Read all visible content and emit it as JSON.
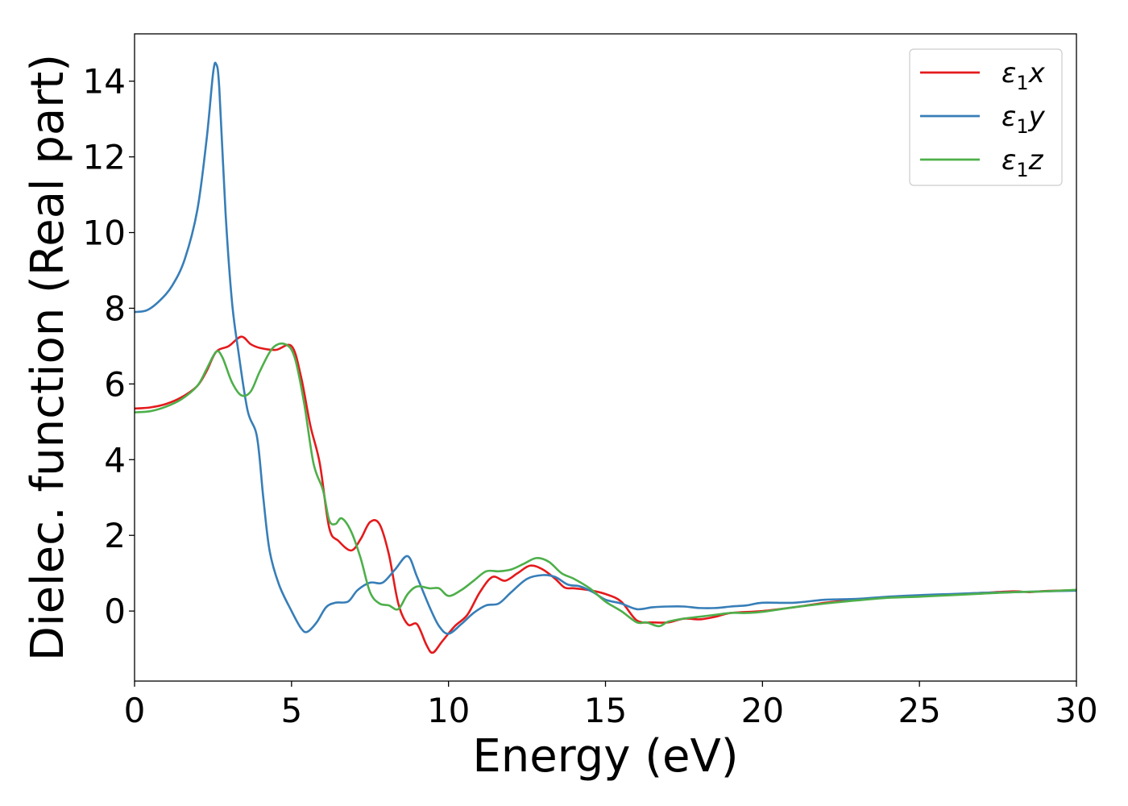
{
  "chart_data": {
    "type": "line",
    "title": "",
    "xlabel": "Energy (eV)",
    "ylabel": "Dielec. function (Real part)",
    "xlim": [
      0,
      30
    ],
    "ylim": [
      -1.85,
      15.25
    ],
    "xticks": [
      0,
      5,
      10,
      15,
      20,
      25,
      30
    ],
    "yticks": [
      0,
      2,
      4,
      6,
      8,
      10,
      12,
      14
    ],
    "grid": false,
    "legend_position": "top-right",
    "series": [
      {
        "name": "ε₁x",
        "legend_main": "ε",
        "legend_sub": "1",
        "legend_tail": "x",
        "color": "#e41a1c",
        "points": [
          [
            0,
            5.35
          ],
          [
            0.5,
            5.38
          ],
          [
            1,
            5.47
          ],
          [
            1.5,
            5.65
          ],
          [
            2,
            5.95
          ],
          [
            2.3,
            6.35
          ],
          [
            2.6,
            6.85
          ],
          [
            3.0,
            7.0
          ],
          [
            3.4,
            7.25
          ],
          [
            3.7,
            7.05
          ],
          [
            4.0,
            6.95
          ],
          [
            4.5,
            6.9
          ],
          [
            5.0,
            7.0
          ],
          [
            5.3,
            6.2
          ],
          [
            5.6,
            4.9
          ],
          [
            5.9,
            3.9
          ],
          [
            6.2,
            2.2
          ],
          [
            6.5,
            1.85
          ],
          [
            6.9,
            1.6
          ],
          [
            7.2,
            1.9
          ],
          [
            7.5,
            2.35
          ],
          [
            7.8,
            2.3
          ],
          [
            8.1,
            1.5
          ],
          [
            8.4,
            0.2
          ],
          [
            8.7,
            -0.35
          ],
          [
            9.0,
            -0.35
          ],
          [
            9.3,
            -0.9
          ],
          [
            9.5,
            -1.1
          ],
          [
            9.8,
            -0.8
          ],
          [
            10.2,
            -0.4
          ],
          [
            10.6,
            -0.1
          ],
          [
            11.0,
            0.5
          ],
          [
            11.4,
            0.9
          ],
          [
            11.8,
            0.8
          ],
          [
            12.2,
            1.0
          ],
          [
            12.6,
            1.2
          ],
          [
            13.0,
            1.1
          ],
          [
            13.4,
            0.85
          ],
          [
            13.7,
            0.62
          ],
          [
            14.0,
            0.6
          ],
          [
            14.5,
            0.55
          ],
          [
            15.0,
            0.45
          ],
          [
            15.5,
            0.25
          ],
          [
            16.0,
            -0.25
          ],
          [
            16.5,
            -0.3
          ],
          [
            17.0,
            -0.3
          ],
          [
            17.5,
            -0.2
          ],
          [
            18.0,
            -0.22
          ],
          [
            18.5,
            -0.15
          ],
          [
            19.0,
            -0.05
          ],
          [
            20.0,
            0.0
          ],
          [
            21.0,
            0.1
          ],
          [
            22.0,
            0.22
          ],
          [
            23.0,
            0.3
          ],
          [
            24.0,
            0.36
          ],
          [
            25.0,
            0.4
          ],
          [
            26.0,
            0.44
          ],
          [
            27.0,
            0.48
          ],
          [
            28.0,
            0.52
          ],
          [
            28.5,
            0.5
          ],
          [
            29.0,
            0.53
          ],
          [
            30.0,
            0.55
          ]
        ]
      },
      {
        "name": "ε₁y",
        "legend_main": "ε",
        "legend_sub": "1",
        "legend_tail": "y",
        "color": "#377eb8",
        "points": [
          [
            0,
            7.9
          ],
          [
            0.4,
            7.95
          ],
          [
            0.8,
            8.2
          ],
          [
            1.2,
            8.6
          ],
          [
            1.6,
            9.3
          ],
          [
            2.0,
            10.6
          ],
          [
            2.3,
            12.5
          ],
          [
            2.5,
            14.2
          ],
          [
            2.6,
            14.45
          ],
          [
            2.7,
            13.8
          ],
          [
            2.9,
            10.5
          ],
          [
            3.1,
            8.2
          ],
          [
            3.3,
            6.9
          ],
          [
            3.6,
            5.3
          ],
          [
            3.9,
            4.6
          ],
          [
            4.1,
            3.0
          ],
          [
            4.3,
            1.6
          ],
          [
            4.6,
            0.7
          ],
          [
            5.0,
            0.0
          ],
          [
            5.3,
            -0.45
          ],
          [
            5.5,
            -0.55
          ],
          [
            5.8,
            -0.3
          ],
          [
            6.1,
            0.1
          ],
          [
            6.4,
            0.22
          ],
          [
            6.8,
            0.25
          ],
          [
            7.1,
            0.55
          ],
          [
            7.5,
            0.75
          ],
          [
            7.9,
            0.75
          ],
          [
            8.3,
            1.1
          ],
          [
            8.7,
            1.45
          ],
          [
            9.0,
            0.9
          ],
          [
            9.4,
            0.1
          ],
          [
            9.7,
            -0.4
          ],
          [
            10.0,
            -0.6
          ],
          [
            10.4,
            -0.35
          ],
          [
            10.8,
            -0.05
          ],
          [
            11.2,
            0.15
          ],
          [
            11.6,
            0.2
          ],
          [
            12.0,
            0.5
          ],
          [
            12.5,
            0.85
          ],
          [
            13.0,
            0.95
          ],
          [
            13.4,
            0.9
          ],
          [
            13.8,
            0.7
          ],
          [
            14.2,
            0.65
          ],
          [
            14.6,
            0.5
          ],
          [
            15.0,
            0.3
          ],
          [
            15.5,
            0.2
          ],
          [
            16.0,
            0.05
          ],
          [
            16.5,
            0.1
          ],
          [
            17.0,
            0.12
          ],
          [
            17.5,
            0.12
          ],
          [
            18.0,
            0.08
          ],
          [
            18.5,
            0.08
          ],
          [
            19.0,
            0.12
          ],
          [
            19.5,
            0.15
          ],
          [
            20.0,
            0.22
          ],
          [
            21.0,
            0.22
          ],
          [
            22.0,
            0.3
          ],
          [
            23.0,
            0.32
          ],
          [
            24.0,
            0.38
          ],
          [
            25.0,
            0.42
          ],
          [
            26.0,
            0.45
          ],
          [
            27.0,
            0.48
          ],
          [
            28.0,
            0.5
          ],
          [
            29.0,
            0.52
          ],
          [
            30.0,
            0.54
          ]
        ]
      },
      {
        "name": "ε₁z",
        "legend_main": "ε",
        "legend_sub": "1",
        "legend_tail": "z",
        "color": "#4daf4a",
        "points": [
          [
            0,
            5.25
          ],
          [
            0.5,
            5.28
          ],
          [
            1,
            5.4
          ],
          [
            1.5,
            5.6
          ],
          [
            2,
            5.95
          ],
          [
            2.3,
            6.4
          ],
          [
            2.6,
            6.85
          ],
          [
            2.8,
            6.7
          ],
          [
            3.1,
            6.05
          ],
          [
            3.4,
            5.7
          ],
          [
            3.7,
            5.8
          ],
          [
            4.0,
            6.35
          ],
          [
            4.4,
            6.95
          ],
          [
            4.8,
            7.05
          ],
          [
            5.1,
            6.7
          ],
          [
            5.4,
            5.5
          ],
          [
            5.7,
            3.9
          ],
          [
            6.0,
            3.2
          ],
          [
            6.2,
            2.4
          ],
          [
            6.4,
            2.3
          ],
          [
            6.6,
            2.45
          ],
          [
            6.9,
            2.1
          ],
          [
            7.2,
            1.4
          ],
          [
            7.5,
            0.5
          ],
          [
            7.8,
            0.2
          ],
          [
            8.1,
            0.15
          ],
          [
            8.4,
            0.05
          ],
          [
            8.7,
            0.45
          ],
          [
            9.0,
            0.65
          ],
          [
            9.4,
            0.6
          ],
          [
            9.7,
            0.6
          ],
          [
            10.0,
            0.4
          ],
          [
            10.4,
            0.55
          ],
          [
            10.8,
            0.8
          ],
          [
            11.2,
            1.05
          ],
          [
            11.6,
            1.05
          ],
          [
            12.0,
            1.1
          ],
          [
            12.4,
            1.25
          ],
          [
            12.8,
            1.4
          ],
          [
            13.2,
            1.3
          ],
          [
            13.6,
            1.0
          ],
          [
            14.0,
            0.85
          ],
          [
            14.5,
            0.6
          ],
          [
            15.0,
            0.25
          ],
          [
            15.5,
            0.0
          ],
          [
            16.0,
            -0.3
          ],
          [
            16.3,
            -0.3
          ],
          [
            16.7,
            -0.4
          ],
          [
            17.0,
            -0.28
          ],
          [
            17.5,
            -0.2
          ],
          [
            18.0,
            -0.15
          ],
          [
            18.5,
            -0.1
          ],
          [
            19.0,
            -0.05
          ],
          [
            19.5,
            -0.05
          ],
          [
            20.0,
            -0.02
          ],
          [
            21.0,
            0.1
          ],
          [
            22.0,
            0.2
          ],
          [
            23.0,
            0.28
          ],
          [
            24.0,
            0.35
          ],
          [
            25.0,
            0.38
          ],
          [
            26.0,
            0.42
          ],
          [
            27.0,
            0.46
          ],
          [
            28.0,
            0.5
          ],
          [
            29.0,
            0.52
          ],
          [
            30.0,
            0.56
          ]
        ]
      }
    ]
  }
}
